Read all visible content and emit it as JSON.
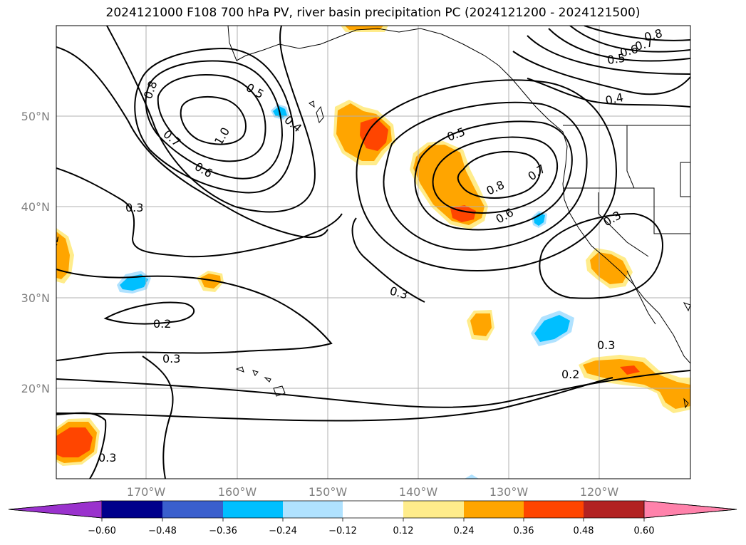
{
  "title": "2024121000 F108 700 hPa PV, river basin precipitation PC (2024121200 - 2024121500)",
  "lat_labels": [
    "50°N",
    "40°N",
    "30°N",
    "20°N"
  ],
  "lon_labels": [
    "170°W",
    "160°W",
    "150°W",
    "140°W",
    "130°W",
    "120°W"
  ],
  "contour_labels": [
    "0.8",
    "0.7",
    "0.6",
    "0.5",
    "0.4",
    "0.5",
    "0.4",
    "0.8",
    "0.7",
    "1.0",
    "0.6",
    "0.5",
    "0.8",
    "0.7",
    "0.6",
    "0.3",
    "0.3",
    "0.2",
    "0.3",
    "0.3",
    "0.3",
    "0.2",
    "0.2",
    "0.3"
  ],
  "colorbar": {
    "ticks": [
      "−0.60",
      "−0.48",
      "−0.36",
      "−0.24",
      "−0.12",
      "0.12",
      "0.24",
      "0.36",
      "0.48",
      "0.60"
    ],
    "colors": [
      "#9a32cd",
      "#00008b",
      "#3a5fcd",
      "#00bfff",
      "#b0e2ff",
      "#ffffff",
      "#ffec8b",
      "#ffa500",
      "#ff4500",
      "#b22222",
      "#ff82ab"
    ]
  }
}
